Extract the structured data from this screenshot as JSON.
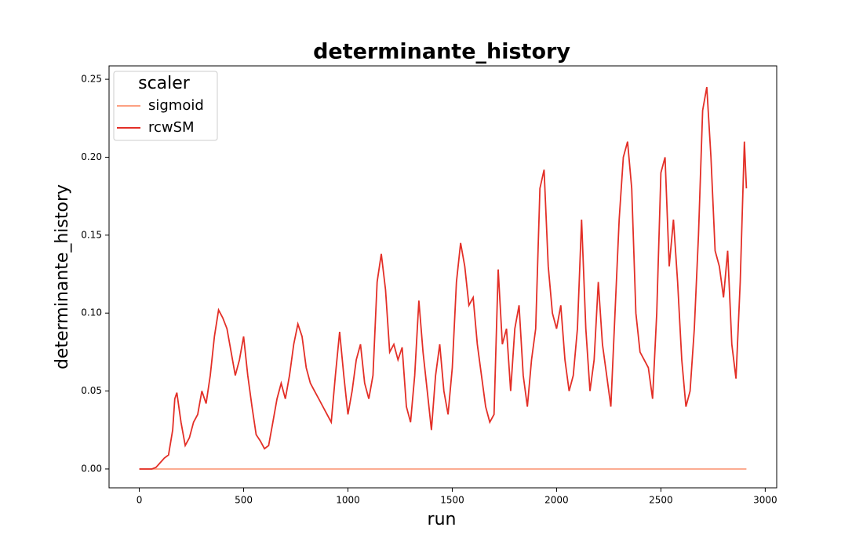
{
  "chart_data": {
    "type": "line",
    "title": "determinante_history",
    "x_label": "run",
    "y_label": "determinante_history",
    "legend_title": "scaler",
    "legend_position": "upper left",
    "xlim": [
      -145,
      3055
    ],
    "ylim": [
      -0.0121,
      0.2586
    ],
    "xticks": [
      0,
      500,
      1000,
      1500,
      2000,
      2500,
      3000
    ],
    "yticks": [
      {
        "value": 0,
        "label": "0.00"
      },
      {
        "value": 0.05,
        "label": "0.05"
      },
      {
        "value": 0.1,
        "label": "0.10"
      },
      {
        "value": 0.15,
        "label": "0.15"
      },
      {
        "value": 0.2,
        "label": "0.20"
      },
      {
        "value": 0.25,
        "label": "0.25"
      }
    ],
    "series": [
      {
        "name": "sigmoid",
        "color": "#fca082",
        "x": [
          0,
          2910
        ],
        "values": [
          0,
          0
        ]
      },
      {
        "name": "rcwSM",
        "color": "#e32f27",
        "x": [
          0,
          20,
          40,
          60,
          80,
          100,
          120,
          140,
          160,
          170,
          180,
          200,
          220,
          240,
          260,
          280,
          300,
          320,
          340,
          360,
          380,
          400,
          420,
          440,
          460,
          480,
          500,
          520,
          540,
          560,
          580,
          600,
          620,
          640,
          660,
          680,
          700,
          720,
          740,
          760,
          780,
          800,
          820,
          840,
          860,
          880,
          900,
          920,
          940,
          960,
          980,
          1000,
          1020,
          1040,
          1060,
          1080,
          1100,
          1120,
          1140,
          1160,
          1180,
          1200,
          1220,
          1240,
          1260,
          1280,
          1300,
          1320,
          1340,
          1360,
          1380,
          1400,
          1420,
          1440,
          1460,
          1480,
          1500,
          1520,
          1540,
          1560,
          1580,
          1600,
          1620,
          1640,
          1660,
          1680,
          1700,
          1720,
          1740,
          1760,
          1780,
          1800,
          1820,
          1840,
          1860,
          1880,
          1900,
          1920,
          1940,
          1960,
          1980,
          2000,
          2020,
          2040,
          2060,
          2080,
          2100,
          2120,
          2140,
          2160,
          2180,
          2200,
          2220,
          2240,
          2260,
          2280,
          2300,
          2320,
          2340,
          2360,
          2380,
          2400,
          2420,
          2440,
          2460,
          2480,
          2500,
          2520,
          2540,
          2560,
          2580,
          2600,
          2620,
          2640,
          2660,
          2680,
          2700,
          2720,
          2740,
          2760,
          2780,
          2800,
          2820,
          2840,
          2860,
          2880,
          2900,
          2910
        ],
        "values": [
          0,
          0,
          0,
          0,
          0.001,
          0.004,
          0.007,
          0.009,
          0.025,
          0.045,
          0.049,
          0.03,
          0.015,
          0.02,
          0.03,
          0.035,
          0.05,
          0.042,
          0.06,
          0.085,
          0.102,
          0.097,
          0.09,
          0.075,
          0.06,
          0.07,
          0.085,
          0.06,
          0.04,
          0.022,
          0.018,
          0.013,
          0.015,
          0.03,
          0.045,
          0.055,
          0.045,
          0.06,
          0.08,
          0.093,
          0.085,
          0.065,
          0.055,
          0.05,
          0.045,
          0.04,
          0.035,
          0.03,
          0.06,
          0.088,
          0.06,
          0.035,
          0.05,
          0.07,
          0.08,
          0.055,
          0.045,
          0.06,
          0.12,
          0.138,
          0.115,
          0.075,
          0.08,
          0.07,
          0.078,
          0.04,
          0.03,
          0.06,
          0.108,
          0.075,
          0.05,
          0.025,
          0.06,
          0.08,
          0.05,
          0.035,
          0.065,
          0.12,
          0.145,
          0.13,
          0.105,
          0.11,
          0.08,
          0.06,
          0.04,
          0.03,
          0.035,
          0.128,
          0.08,
          0.09,
          0.05,
          0.09,
          0.105,
          0.06,
          0.04,
          0.07,
          0.09,
          0.18,
          0.192,
          0.13,
          0.1,
          0.09,
          0.105,
          0.07,
          0.05,
          0.06,
          0.09,
          0.16,
          0.09,
          0.05,
          0.07,
          0.12,
          0.08,
          0.06,
          0.04,
          0.1,
          0.16,
          0.2,
          0.21,
          0.18,
          0.1,
          0.075,
          0.07,
          0.065,
          0.045,
          0.1,
          0.19,
          0.2,
          0.13,
          0.16,
          0.12,
          0.07,
          0.04,
          0.05,
          0.09,
          0.15,
          0.23,
          0.245,
          0.2,
          0.14,
          0.13,
          0.11,
          0.14,
          0.08,
          0.058,
          0.12,
          0.21,
          0.18
        ]
      }
    ]
  }
}
